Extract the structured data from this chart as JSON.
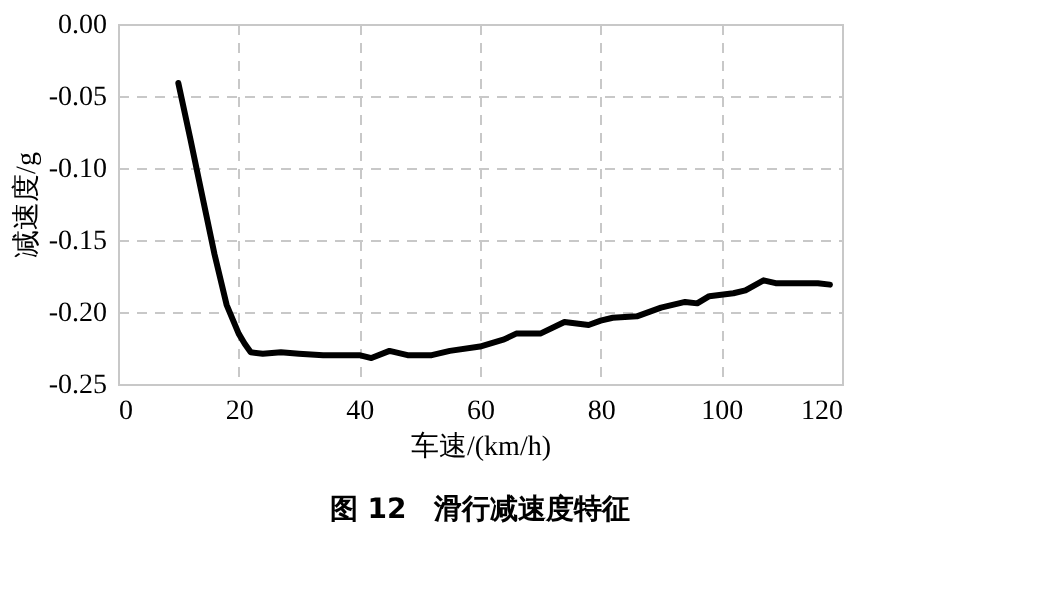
{
  "chart_data": {
    "type": "line",
    "title": "图 12　滑行减速度特征",
    "xlabel": "车速/(km/h)",
    "ylabel": "减速度/g",
    "x": [
      10,
      12,
      14,
      16,
      18,
      20,
      21,
      22,
      24,
      27,
      30,
      34,
      38,
      40,
      42,
      45,
      48,
      52,
      55,
      60,
      64,
      66,
      70,
      74,
      78,
      80,
      82,
      86,
      90,
      94,
      96,
      98,
      102,
      104,
      107,
      109,
      112,
      116,
      118
    ],
    "series": [
      {
        "color": "#000000",
        "values": [
          -0.041,
          -0.08,
          -0.12,
          -0.16,
          -0.195,
          -0.215,
          -0.222,
          -0.228,
          -0.229,
          -0.228,
          -0.229,
          -0.23,
          -0.23,
          -0.23,
          -0.232,
          -0.227,
          -0.23,
          -0.23,
          -0.227,
          -0.224,
          -0.219,
          -0.215,
          -0.215,
          -0.207,
          -0.209,
          -0.206,
          -0.204,
          -0.203,
          -0.197,
          -0.193,
          -0.194,
          -0.189,
          -0.187,
          -0.185,
          -0.178,
          -0.18,
          -0.18,
          -0.18,
          -0.181
        ]
      }
    ],
    "xlim": [
      0,
      120
    ],
    "xticks": [
      0,
      20,
      40,
      60,
      80,
      100,
      120
    ],
    "ylim": [
      -0.25,
      0.0
    ],
    "yticks": [
      {
        "value": 0,
        "label": "0.00"
      },
      {
        "value": -0.05,
        "label": "-0.05"
      },
      {
        "value": -0.1,
        "label": "-0.10"
      },
      {
        "value": -0.15,
        "label": "-0.15"
      },
      {
        "value": -0.2,
        "label": "-0.20"
      },
      {
        "value": -0.25,
        "label": "-0.25"
      }
    ],
    "grid": true,
    "marker": "none",
    "line_style": "solid"
  }
}
